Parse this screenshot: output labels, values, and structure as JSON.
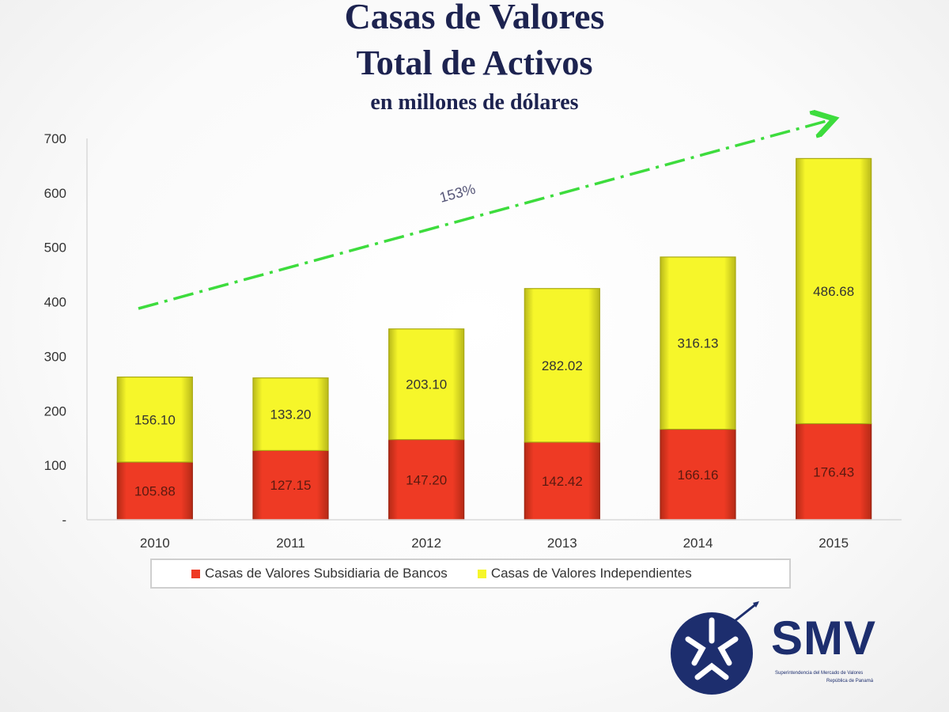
{
  "titles": {
    "line1": "Casas de Valores",
    "line2": "Total de Activos",
    "line3": "en millones de dólares"
  },
  "chart_data": {
    "type": "bar",
    "stacked": true,
    "title": "Casas de Valores Total de Activos",
    "subtitle": "en millones de dólares",
    "categories": [
      "2010",
      "2011",
      "2012",
      "2013",
      "2014",
      "2015"
    ],
    "series": [
      {
        "name": "Casas de Valores Subsidiaria de Bancos",
        "color": "#ee3a24",
        "values": [
          105.88,
          127.15,
          147.2,
          142.42,
          166.16,
          176.43
        ],
        "labels": [
          "105.88",
          "127.15",
          "147.20",
          "142.42",
          "166.16",
          "176.43"
        ]
      },
      {
        "name": "Casas de Valores Independientes",
        "color": "#f6f62a",
        "values": [
          156.1,
          133.2,
          203.1,
          282.02,
          316.13,
          486.68
        ],
        "labels": [
          "156.10",
          "133.20",
          "203.10",
          "282.02",
          "316.13",
          "486.68"
        ]
      }
    ],
    "yticks": [
      "-",
      "100",
      "200",
      "300",
      "400",
      "500",
      "600",
      "700"
    ],
    "ylim": [
      0,
      700
    ],
    "grid": false,
    "legend_position": "bottom",
    "trend_annotation": {
      "label": "153%",
      "color": "#3ddc3d",
      "style": "dash-dot arrow"
    }
  },
  "logo": {
    "text": "SMV",
    "subtitle_line1": "Superintendencia del Mercado de Valores",
    "subtitle_line2": "República de Panamá",
    "color": "#1d2e6e"
  }
}
